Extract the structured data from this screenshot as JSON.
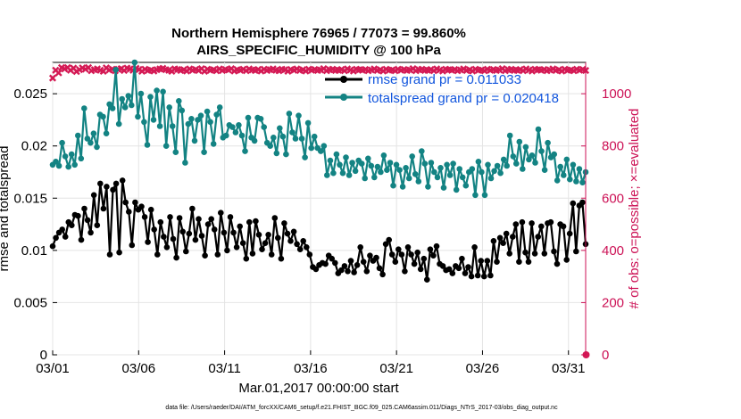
{
  "chart_data": {
    "type": "line",
    "title_line1": "Northern Hemisphere 76965 / 77073 = 99.860%",
    "title_line2": "AIRS_SPECIFIC_HUMIDITY @ 100 hPa",
    "xlabel": "Mar.01,2017 00:00:00 start",
    "ylabel_left": "rmse and totalspread",
    "ylabel_right": "# of obs: o=possible; ×=evaluated",
    "footer": "data file: /Users/raeder/DAI/ATM_forcXX/CAM6_setup/f.e21.FHIST_BGC.f09_025.CAM6assim.011/Diags_NTrS_2017-03/obs_diag_output.nc",
    "x_ticks": [
      {
        "day": 1,
        "label": "03/01"
      },
      {
        "day": 6,
        "label": "03/06"
      },
      {
        "day": 11,
        "label": "03/11"
      },
      {
        "day": 16,
        "label": "03/16"
      },
      {
        "day": 21,
        "label": "03/21"
      },
      {
        "day": 26,
        "label": "03/26"
      },
      {
        "day": 31,
        "label": "03/31"
      }
    ],
    "x_unit": "day of March 2017",
    "xlim": [
      1,
      32
    ],
    "y_left_ticks": [
      "0",
      "0.005",
      "0.01",
      "0.015",
      "0.02",
      "0.025"
    ],
    "y_left_lim": [
      0,
      0.028
    ],
    "y_right_ticks": [
      "0",
      "200",
      "400",
      "600",
      "800",
      "1000"
    ],
    "y_right_lim": [
      0,
      1120
    ],
    "colors": {
      "rmse": "#000000",
      "spread": "#138383",
      "obs": "#d41a55",
      "legend_text": "#1155dd",
      "right_axis": "#cc1155"
    },
    "series": [
      {
        "name": "rmse grand pr = 0.011033",
        "legend": "rmse grand pr = 0.011033",
        "values": [
          0.0104,
          0.0112,
          0.0117,
          0.012,
          0.0113,
          0.0127,
          0.0124,
          0.0134,
          0.0133,
          0.011,
          0.014,
          0.0129,
          0.0117,
          0.0153,
          0.0124,
          0.0164,
          0.014,
          0.0161,
          0.0096,
          0.0158,
          0.0164,
          0.0098,
          0.0167,
          0.0146,
          0.0137,
          0.0105,
          0.0146,
          0.0139,
          0.0142,
          0.0132,
          0.0108,
          0.0139,
          0.012,
          0.0096,
          0.0127,
          0.0113,
          0.0103,
          0.0132,
          0.0111,
          0.0093,
          0.0131,
          0.0118,
          0.0099,
          0.0116,
          0.014,
          0.011,
          0.013,
          0.0114,
          0.0095,
          0.0125,
          0.013,
          0.012,
          0.0096,
          0.0136,
          0.0117,
          0.01,
          0.0132,
          0.0117,
          0.0103,
          0.0123,
          0.0107,
          0.0092,
          0.0127,
          0.0097,
          0.0128,
          0.0115,
          0.0101,
          0.0107,
          0.0115,
          0.0096,
          0.0131,
          0.0112,
          0.0092,
          0.0126,
          0.0116,
          0.0109,
          0.0118,
          0.0106,
          0.0101,
          0.0109,
          0.0103,
          0.0096,
          0.0084,
          0.0082,
          0.0086,
          0.0088,
          0.0087,
          0.0095,
          0.0092,
          0.0088,
          0.0078,
          0.0081,
          0.0085,
          0.008,
          0.009,
          0.0079,
          0.0086,
          0.0103,
          0.0089,
          0.008,
          0.0095,
          0.009,
          0.0093,
          0.0083,
          0.0077,
          0.0106,
          0.011,
          0.0096,
          0.0089,
          0.0101,
          0.0096,
          0.008,
          0.0103,
          0.0096,
          0.0087,
          0.0098,
          0.0082,
          0.0092,
          0.0072,
          0.0101,
          0.0095,
          0.0104,
          0.0087,
          0.0085,
          0.0081,
          0.0082,
          0.0078,
          0.0085,
          0.0083,
          0.0092,
          0.0078,
          0.0084,
          0.0075,
          0.0103,
          0.0076,
          0.009,
          0.0075,
          0.009,
          0.0076,
          0.0109,
          0.0089,
          0.0112,
          0.0107,
          0.0116,
          0.0097,
          0.0113,
          0.0125,
          0.0089,
          0.0127,
          0.0098,
          0.0089,
          0.0126,
          0.0097,
          0.0113,
          0.0123,
          0.0097,
          0.0126,
          0.0127,
          0.0099,
          0.0087,
          0.0125,
          0.0123,
          0.0091,
          0.0116,
          0.0145,
          0.0099,
          0.0143,
          0.0146,
          0.0106
        ]
      },
      {
        "name": "totalspread grand pr = 0.020418",
        "legend": "totalspread grand pr = 0.020418",
        "values": [
          0.0182,
          0.0185,
          0.0181,
          0.0203,
          0.019,
          0.018,
          0.0192,
          0.0182,
          0.021,
          0.0188,
          0.0236,
          0.0207,
          0.0203,
          0.0212,
          0.0199,
          0.023,
          0.0228,
          0.0212,
          0.024,
          0.0236,
          0.0273,
          0.0221,
          0.0245,
          0.0237,
          0.0248,
          0.0239,
          0.0285,
          0.0228,
          0.025,
          0.0223,
          0.0201,
          0.0247,
          0.0225,
          0.0253,
          0.0219,
          0.0252,
          0.02,
          0.0237,
          0.0219,
          0.0194,
          0.0243,
          0.0234,
          0.0184,
          0.0221,
          0.0226,
          0.0205,
          0.0225,
          0.0229,
          0.0194,
          0.0233,
          0.0223,
          0.0202,
          0.023,
          0.0237,
          0.0208,
          0.021,
          0.022,
          0.0218,
          0.0213,
          0.022,
          0.021,
          0.0195,
          0.0227,
          0.0208,
          0.0205,
          0.0227,
          0.0226,
          0.0218,
          0.0203,
          0.02,
          0.0208,
          0.0193,
          0.0217,
          0.0209,
          0.0192,
          0.0231,
          0.0213,
          0.0207,
          0.0229,
          0.0207,
          0.0189,
          0.0222,
          0.0198,
          0.0209,
          0.0198,
          0.0195,
          0.02,
          0.0172,
          0.0186,
          0.0174,
          0.0192,
          0.0182,
          0.0174,
          0.0189,
          0.0172,
          0.0184,
          0.0176,
          0.0186,
          0.0183,
          0.0169,
          0.0188,
          0.0181,
          0.017,
          0.018,
          0.0175,
          0.0191,
          0.0177,
          0.0184,
          0.0162,
          0.0182,
          0.0177,
          0.0161,
          0.0179,
          0.0169,
          0.019,
          0.0173,
          0.0166,
          0.0195,
          0.0183,
          0.0161,
          0.0184,
          0.0175,
          0.017,
          0.0179,
          0.016,
          0.0182,
          0.0172,
          0.0183,
          0.0158,
          0.0178,
          0.017,
          0.0162,
          0.0175,
          0.0178,
          0.0153,
          0.0185,
          0.0175,
          0.0153,
          0.0182,
          0.0169,
          0.0176,
          0.0181,
          0.0174,
          0.0187,
          0.0181,
          0.021,
          0.019,
          0.0183,
          0.0204,
          0.0178,
          0.0199,
          0.0187,
          0.0191,
          0.0184,
          0.0216,
          0.0195,
          0.0177,
          0.0203,
          0.0189,
          0.0192,
          0.0167,
          0.018,
          0.0172,
          0.0187,
          0.0168,
          0.0182,
          0.0166,
          0.0178,
          0.0165,
          0.0175
        ]
      },
      {
        "name": "# of obs evaluated",
        "values": [
          1060,
          1090,
          1080,
          1100,
          1095,
          1100,
          1090,
          1098,
          1085,
          1092,
          1099,
          1094,
          1100,
          1088,
          1092,
          1095,
          1090,
          1086,
          1099,
          1091,
          1094,
          1088,
          1094,
          1096,
          1089,
          1098,
          1095,
          1090,
          1097,
          1093,
          1086,
          1094,
          1089,
          1091,
          1087,
          1092,
          1095,
          1097,
          1092,
          1090,
          1086,
          1095,
          1093,
          1089,
          1092,
          1087,
          1095,
          1090,
          1093,
          1089,
          1096,
          1086,
          1094,
          1090,
          1092,
          1088,
          1095,
          1089,
          1093,
          1091,
          1096,
          1087,
          1092,
          1090,
          1094,
          1088,
          1095,
          1091,
          1089,
          1093,
          1087,
          1094,
          1089,
          1092,
          1095,
          1090,
          1088,
          1094,
          1092,
          1086,
          1093,
          1090,
          1095,
          1089,
          1092,
          1087,
          1094,
          1090,
          1093,
          1089,
          1091,
          1096,
          1088,
          1092,
          1094,
          1089,
          1090,
          1093,
          1088,
          1095,
          1091,
          1087,
          1094,
          1092,
          1090,
          1093,
          1088,
          1091,
          1095,
          1089,
          1092,
          1087,
          1094,
          1090,
          1091,
          1088,
          1094,
          1090,
          1093,
          1089,
          1091,
          1096,
          1088,
          1092,
          1094,
          1089,
          1090,
          1093,
          1088,
          1095,
          1091,
          1087,
          1094,
          1092,
          1090,
          1093,
          1088,
          1091,
          1095,
          1089,
          1092,
          1087,
          1094,
          1090,
          1091,
          1088,
          1094,
          1090,
          1093,
          1089,
          1091,
          1096,
          1088,
          1092,
          1094,
          1089,
          1090,
          1093,
          1088,
          1095,
          1091,
          1087,
          1094,
          1092,
          1090,
          1093,
          1088,
          1091,
          1095,
          1089,
          1092,
          1087,
          1094,
          1090,
          1091,
          1088,
          1094,
          1090,
          1093,
          1089
        ]
      }
    ]
  }
}
